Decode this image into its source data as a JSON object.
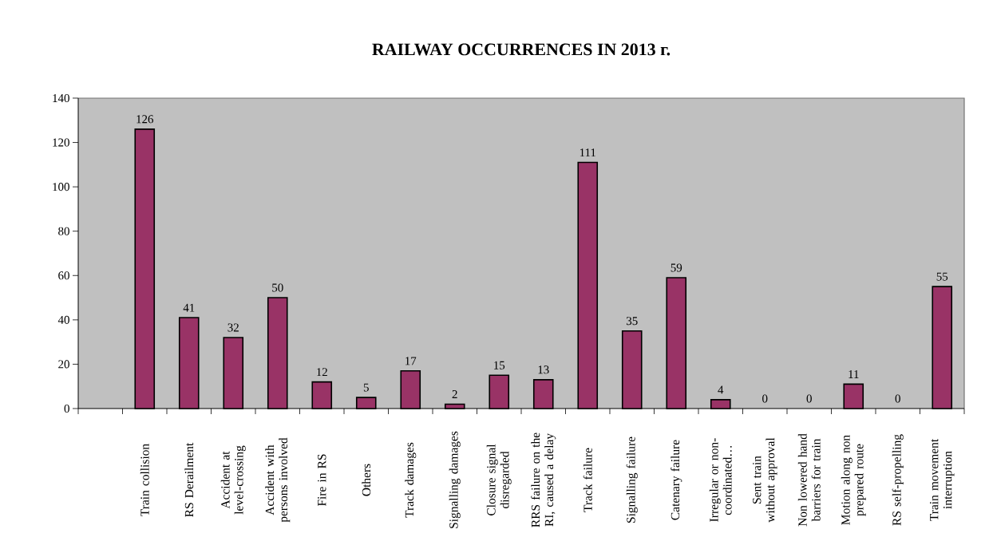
{
  "chart_data": {
    "type": "bar",
    "title": "RAILWAY OCCURRENCES IN 2013 г.",
    "categories": [
      null,
      "Train collision",
      "RS Derailment",
      "Accident at level-crossing",
      "Accident with persons involved",
      "Fire in RS",
      "Others",
      "Track damages",
      "Signalling damages",
      "Closure signal disregarded",
      "RRS failure on the RI, caused a delay",
      "Track failure",
      "Signalling failure",
      "Catenary failure",
      "Irregular or non-coordinated…",
      "Sent train without approval",
      "Non lowered hand barriers for train",
      "Motion along non prepared route",
      "RS self-propelling",
      "Train movement interruption"
    ],
    "values": [
      null,
      126,
      41,
      32,
      50,
      12,
      5,
      17,
      2,
      15,
      13,
      111,
      35,
      59,
      4,
      0,
      0,
      11,
      0,
      55
    ],
    "color": "#993366",
    "ylim": [
      0,
      140
    ],
    "yticks": [
      0,
      20,
      40,
      60,
      80,
      100,
      120,
      140
    ],
    "data_labels": true,
    "grid": false
  }
}
